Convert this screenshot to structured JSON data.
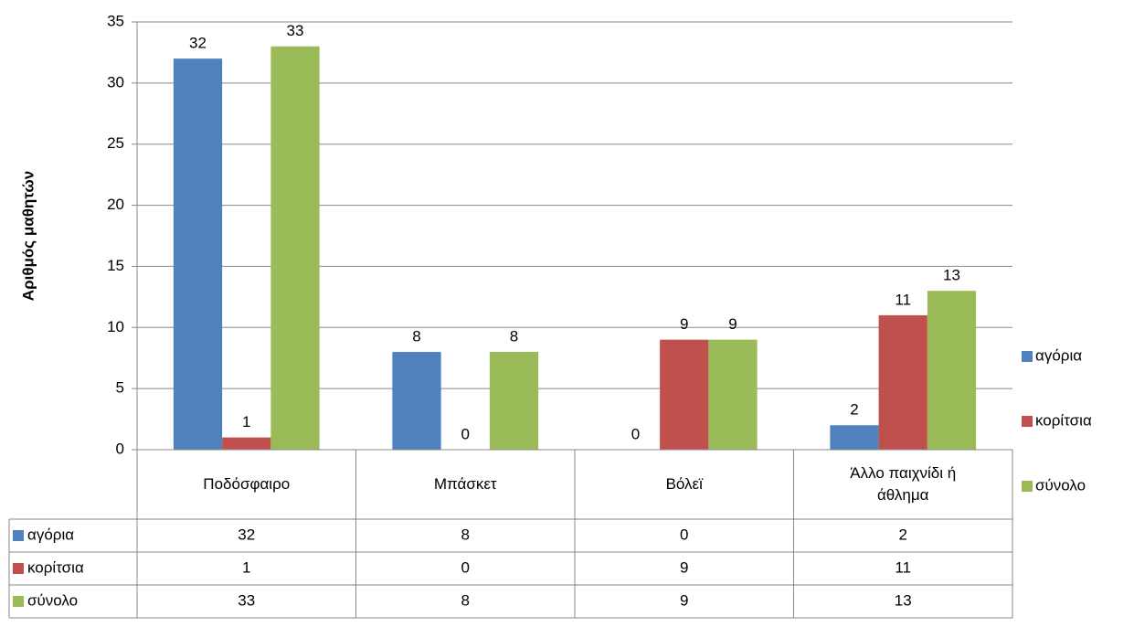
{
  "chart_data": {
    "type": "bar",
    "y_label": "Αριθμός μαθητών",
    "categories": [
      "Ποδόσφαιρο",
      "Μπάσκετ",
      "Βόλεϊ",
      "Άλλο παιχνίδι ή άθλημα"
    ],
    "series": [
      {
        "name": "αγόρια",
        "color": "#4f81bd",
        "values": [
          32,
          8,
          0,
          2
        ]
      },
      {
        "name": "κορίτσια",
        "color": "#c0504d",
        "values": [
          1,
          0,
          9,
          11
        ]
      },
      {
        "name": "σύνολο",
        "color": "#9bbb59",
        "values": [
          33,
          8,
          9,
          13
        ]
      }
    ],
    "ylim": [
      0,
      35
    ],
    "yticks": [
      0,
      5,
      10,
      15,
      20,
      25,
      30,
      35
    ],
    "grid": true,
    "legend": "right",
    "data_labels": true,
    "data_table": true
  }
}
